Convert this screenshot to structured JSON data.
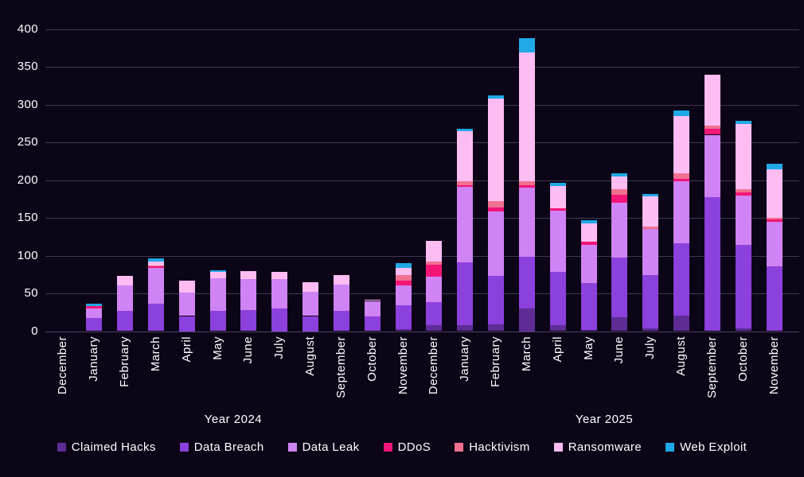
{
  "chart": {
    "background_color": "#0C0517",
    "text_color": "#FFFFFF",
    "gridline_color": "#3F3954",
    "axis_line_color": "#4A4360"
  },
  "chart_data": {
    "type": "bar",
    "stacked": true,
    "title": "",
    "xlabel": "",
    "ylabel": "",
    "ylim": [
      0,
      400
    ],
    "ytick_step": 50,
    "grid": true,
    "legend_position": "bottom",
    "categories": [
      "December",
      "January",
      "February",
      "March",
      "April",
      "May",
      "June",
      "July",
      "August",
      "September",
      "October",
      "November",
      "December",
      "January",
      "February",
      "March",
      "April",
      "May",
      "June",
      "July",
      "August",
      "September",
      "October",
      "November"
    ],
    "groups": [
      {
        "label": "Year 2024",
        "start": 0,
        "end": 11
      },
      {
        "label": "Year 2025",
        "start": 12,
        "end": 23
      }
    ],
    "series": [
      {
        "name": "Claimed Hacks",
        "color": "#5F2C96",
        "values": [
          0,
          0,
          0,
          0,
          0,
          0,
          0,
          0,
          0,
          0,
          0,
          3,
          8,
          8,
          9,
          30,
          8,
          2,
          18,
          4,
          21,
          0,
          4,
          0
        ]
      },
      {
        "name": "Data Breach",
        "color": "#8C40DC",
        "values": [
          0,
          17,
          27,
          36,
          20,
          27,
          28,
          30,
          20,
          27,
          19,
          31,
          30,
          83,
          64,
          68,
          70,
          62,
          79,
          70,
          95,
          177,
          110,
          86
        ]
      },
      {
        "name": "Data Leak",
        "color": "#D083F4",
        "values": [
          0,
          13,
          34,
          48,
          31,
          43,
          41,
          39,
          32,
          35,
          21,
          27,
          34,
          100,
          85,
          92,
          81,
          50,
          73,
          61,
          82,
          83,
          65,
          59
        ]
      },
      {
        "name": "DDoS",
        "color": "#F31577",
        "values": [
          0,
          3,
          0,
          2,
          0,
          0,
          0,
          0,
          0,
          0,
          0,
          6,
          16,
          2,
          6,
          3,
          4,
          4,
          11,
          0,
          4,
          8,
          5,
          3
        ]
      },
      {
        "name": "Hacktivism",
        "color": "#F0708F",
        "values": [
          0,
          0,
          0,
          1,
          0,
          0,
          0,
          0,
          0,
          0,
          0,
          7,
          4,
          5,
          8,
          5,
          0,
          0,
          7,
          3,
          7,
          4,
          4,
          2
        ]
      },
      {
        "name": "Ransomware",
        "color": "#FDBDF2",
        "values": [
          0,
          0,
          12,
          5,
          16,
          8,
          10,
          9,
          13,
          12,
          2,
          10,
          28,
          67,
          136,
          171,
          29,
          25,
          17,
          40,
          76,
          67,
          86,
          64
        ]
      },
      {
        "name": "Web Exploit",
        "color": "#1FA9E6",
        "values": [
          0,
          3,
          0,
          4,
          0,
          3,
          0,
          0,
          0,
          0,
          0,
          6,
          0,
          3,
          4,
          19,
          4,
          4,
          4,
          4,
          7,
          0,
          4,
          8
        ]
      }
    ]
  }
}
